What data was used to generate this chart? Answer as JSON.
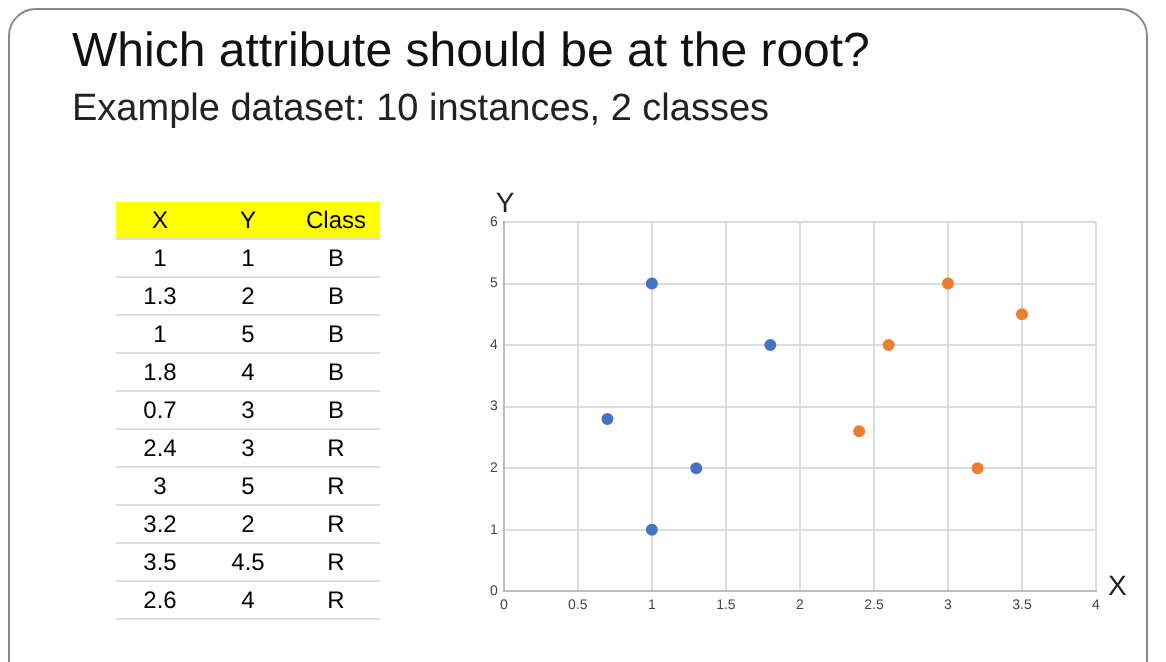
{
  "chart_data": [
    {
      "type": "other",
      "title": "Which attribute should be at the root?",
      "subtitle": "Example dataset: 10 instances, 2 classes",
      "categories": [
        "X",
        "Y",
        "Class"
      ],
      "cell_labels": [
        [
          "1",
          "1",
          "B"
        ],
        [
          "1.3",
          "2",
          "B"
        ],
        [
          "1",
          "5",
          "B"
        ],
        [
          "1.8",
          "4",
          "B"
        ],
        [
          "0.7",
          "3",
          "B"
        ],
        [
          "2.4",
          "3",
          "R"
        ],
        [
          "3",
          "5",
          "R"
        ],
        [
          "3.2",
          "2",
          "R"
        ],
        [
          "3.5",
          "4.5",
          "R"
        ],
        [
          "2.6",
          "4",
          "R"
        ]
      ]
    },
    {
      "type": "scatter",
      "xlabel": "X",
      "ylabel": "Y",
      "series": [
        {
          "color": "#4472c4",
          "x": [
            1,
            1.3,
            1,
            1.8,
            0.7
          ],
          "values": [
            1,
            2,
            5,
            4,
            2.8
          ]
        },
        {
          "color": "#ed7d31",
          "x": [
            2.4,
            3,
            3.2,
            3.5,
            2.6
          ],
          "values": [
            2.6,
            5,
            2,
            4.5,
            4
          ]
        }
      ],
      "xlim": [
        0,
        4
      ],
      "xticks": [
        0,
        0.5,
        1,
        1.5,
        2,
        2.5,
        3,
        3.5,
        4
      ],
      "ylim": [
        0,
        6
      ],
      "yticks": [
        0,
        1,
        2,
        3,
        4,
        5,
        6
      ],
      "grid": true,
      "marker": "circle"
    }
  ]
}
